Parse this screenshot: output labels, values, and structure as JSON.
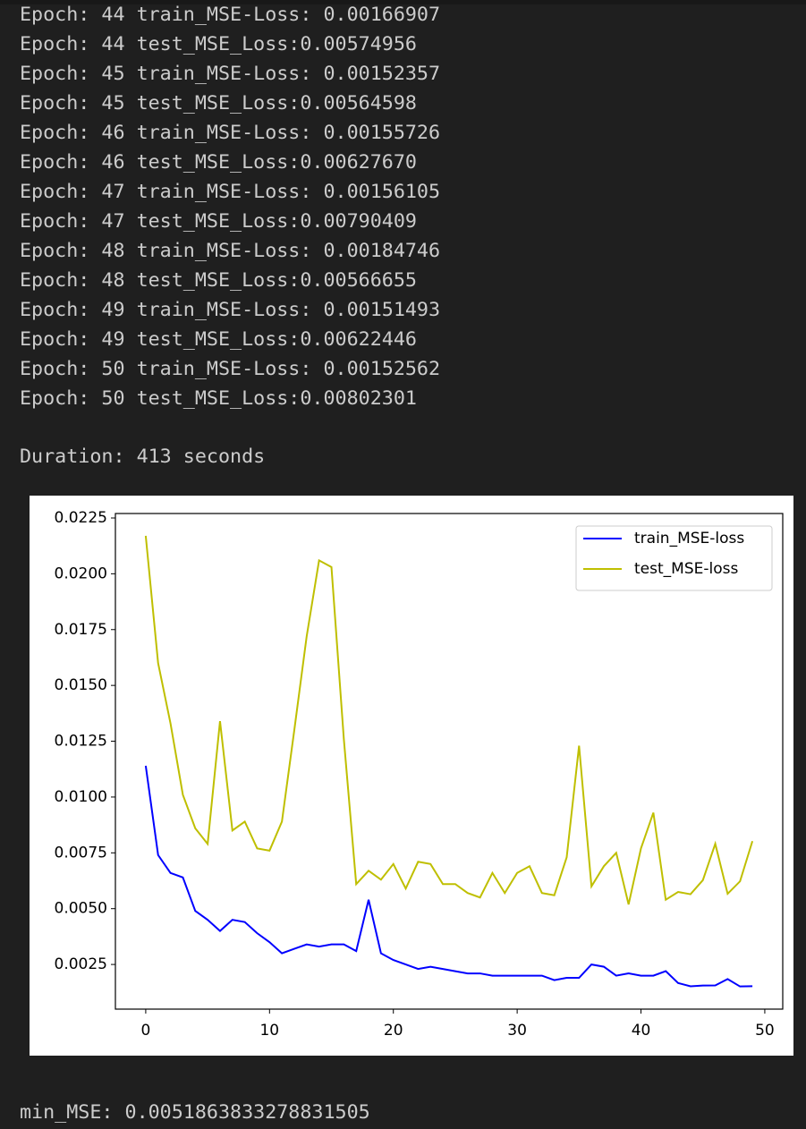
{
  "log_lines": [
    "Epoch: 44 train_MSE-Loss: 0.00166907",
    "Epoch: 44 test_MSE_Loss:0.00574956",
    "Epoch: 45 train_MSE-Loss: 0.00152357",
    "Epoch: 45 test_MSE_Loss:0.00564598",
    "Epoch: 46 train_MSE-Loss: 0.00155726",
    "Epoch: 46 test_MSE_Loss:0.00627670",
    "Epoch: 47 train_MSE-Loss: 0.00156105",
    "Epoch: 47 test_MSE_Loss:0.00790409",
    "Epoch: 48 train_MSE-Loss: 0.00184746",
    "Epoch: 48 test_MSE_Loss:0.00566655",
    "Epoch: 49 train_MSE-Loss: 0.00151493",
    "Epoch: 49 test_MSE_Loss:0.00622446",
    "Epoch: 50 train_MSE-Loss: 0.00152562",
    "Epoch: 50 test_MSE_Loss:0.00802301"
  ],
  "duration": "Duration: 413 seconds",
  "chart_data": {
    "type": "line",
    "x": [
      0,
      1,
      2,
      3,
      4,
      5,
      6,
      7,
      8,
      9,
      10,
      11,
      12,
      13,
      14,
      15,
      16,
      17,
      18,
      19,
      20,
      21,
      22,
      23,
      24,
      25,
      26,
      27,
      28,
      29,
      30,
      31,
      32,
      33,
      34,
      35,
      36,
      37,
      38,
      39,
      40,
      41,
      42,
      43,
      44,
      45,
      46,
      47,
      48,
      49
    ],
    "series": [
      {
        "name": "train_MSE-loss",
        "color": "#0000ff",
        "values": [
          0.0114,
          0.0074,
          0.0066,
          0.0064,
          0.0049,
          0.0045,
          0.004,
          0.0045,
          0.0044,
          0.0039,
          0.0035,
          0.003,
          0.0032,
          0.0034,
          0.0033,
          0.0034,
          0.0034,
          0.0031,
          0.0054,
          0.003,
          0.0027,
          0.0025,
          0.0023,
          0.0024,
          0.0023,
          0.0022,
          0.0021,
          0.0021,
          0.002,
          0.002,
          0.002,
          0.002,
          0.002,
          0.0018,
          0.0019,
          0.0019,
          0.0025,
          0.0024,
          0.002,
          0.0021,
          0.002,
          0.002,
          0.0022,
          0.00166907,
          0.00152357,
          0.00155726,
          0.00156105,
          0.00184746,
          0.00151493,
          0.00152562
        ]
      },
      {
        "name": "test_MSE-loss",
        "color": "#bfbf00",
        "values": [
          0.0217,
          0.016,
          0.0133,
          0.0101,
          0.0086,
          0.0079,
          0.0134,
          0.0085,
          0.0089,
          0.0077,
          0.0076,
          0.0089,
          0.013,
          0.0172,
          0.0206,
          0.0203,
          0.0126,
          0.0061,
          0.0067,
          0.0063,
          0.007,
          0.0059,
          0.0071,
          0.007,
          0.0061,
          0.0061,
          0.0057,
          0.0055,
          0.0066,
          0.0057,
          0.0066,
          0.0069,
          0.0057,
          0.0056,
          0.0073,
          0.0123,
          0.006,
          0.0069,
          0.0075,
          0.00519,
          0.0077,
          0.0093,
          0.0054,
          0.00574956,
          0.00564598,
          0.0062767,
          0.00790409,
          0.00566655,
          0.00622446,
          0.00802301
        ]
      }
    ],
    "xlim": [
      -2.45,
      51.45
    ],
    "xticks": [
      0,
      10,
      20,
      30,
      40,
      50
    ],
    "ylim": [
      0.0005,
      0.0227
    ],
    "yticks": [
      0.0025,
      {
        "value": 0.005,
        "label": "0.0050"
      },
      0.0075,
      {
        "value": 0.01,
        "label": "0.0100"
      },
      0.0125,
      {
        "value": 0.015,
        "label": "0.0150"
      },
      0.0175,
      {
        "value": 0.02,
        "label": "0.0200"
      },
      0.0225
    ],
    "legend": "upper right"
  },
  "min_mse": "min_MSE: 0.0051863833278831505"
}
